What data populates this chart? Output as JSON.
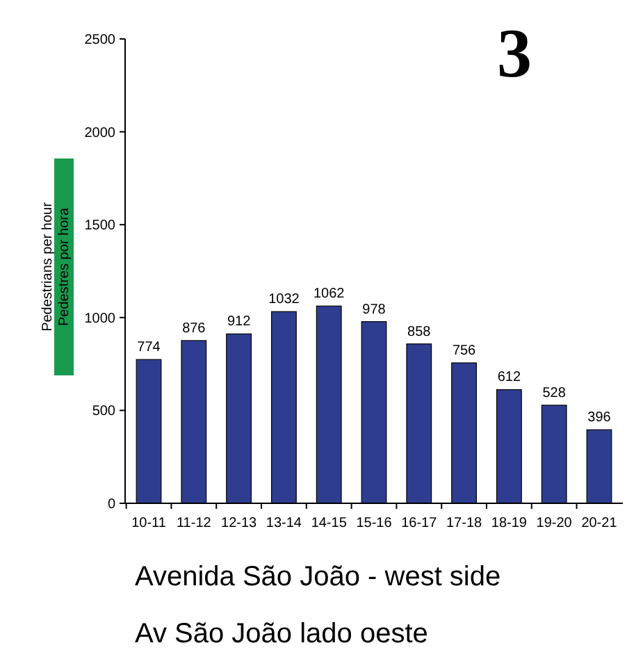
{
  "chart_data": {
    "type": "bar",
    "title": "3",
    "ylabel": "Pedestrians per hour",
    "y2label": "Pedestres por hora",
    "xlabel": "Avenida São João - west side",
    "annotations": [
      "Av São João lado oeste"
    ],
    "categories": [
      "10-11",
      "11-12",
      "12-13",
      "13-14",
      "14-15",
      "15-16",
      "16-17",
      "17-18",
      "18-19",
      "19-20",
      "20-21"
    ],
    "values": [
      774,
      876,
      912,
      1032,
      1062,
      978,
      858,
      756,
      612,
      528,
      396
    ],
    "color": "#2e3d8f",
    "ylim": [
      0,
      2500
    ],
    "yticks": [
      0,
      500,
      1000,
      1500,
      2000,
      2500
    ],
    "data_labels": true,
    "grid": false
  }
}
